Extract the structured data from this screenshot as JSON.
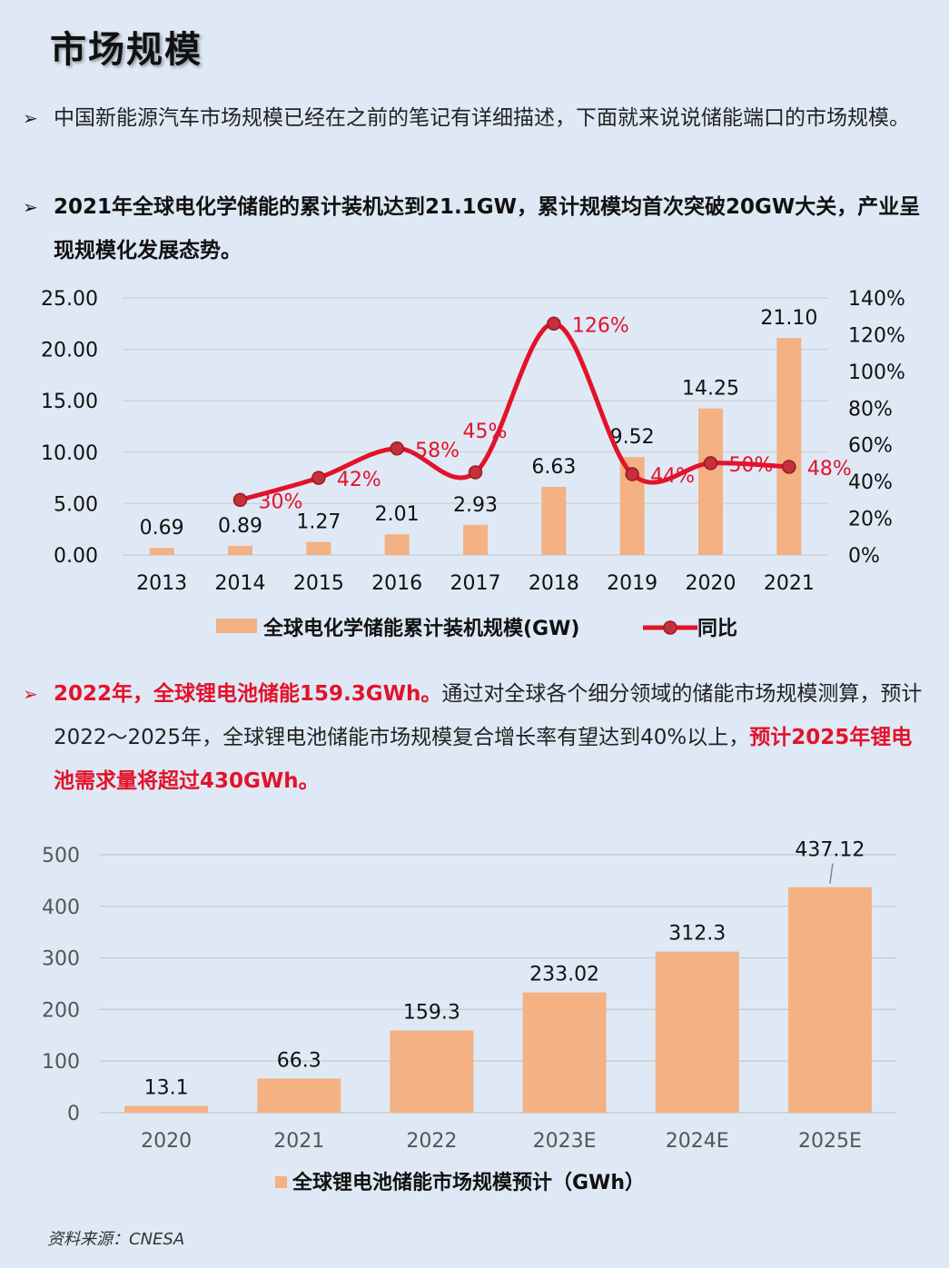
{
  "title": "市场规模",
  "bullet1": {
    "text": "中国新能源汽车市场规模已经在之前的笔记有详细描述，下面就来说说储能端口的市场规模。"
  },
  "bullet2": {
    "text": "2021年全球电化学储能的累计装机达到21.1GW，累计规模均首次突破20GW大关，产业呈现规模化发展态势。"
  },
  "bullet3": {
    "part1": "2022年，全球锂电池储能159.3GWh。",
    "part2": "通过对全球各个细分领域的储能市场规模测算，预计2022～2025年，全球锂电池储能市场规模复合增长率有望达到40%以上，",
    "part3": "预计2025年锂电池需求量将超过430GWh。"
  },
  "source": "资料来源：CNESA",
  "chart_data": [
    {
      "type": "bar",
      "categories": [
        "2013",
        "2014",
        "2015",
        "2016",
        "2017",
        "2018",
        "2019",
        "2020",
        "2021"
      ],
      "series": [
        {
          "name": "全球电化学储能累计装机规模(GW)",
          "values": [
            0.69,
            0.89,
            1.27,
            2.01,
            2.93,
            6.63,
            9.52,
            14.25,
            21.1
          ],
          "labels": [
            "0.69",
            "0.89",
            "1.27",
            "2.01",
            "2.93",
            "6.63",
            "9.52",
            "14.25",
            "21.10"
          ],
          "color": "#f4b183",
          "axis": "left"
        },
        {
          "name": "同比",
          "type": "line",
          "values": [
            null,
            30,
            42,
            58,
            45,
            126,
            44,
            50,
            48
          ],
          "labels": [
            "",
            "30%",
            "42%",
            "58%",
            "45%",
            "126%",
            "44%",
            "50%",
            "48%"
          ],
          "color": "#e3122a",
          "axis": "right"
        }
      ],
      "yticks_left": [
        "0.00",
        "5.00",
        "10.00",
        "15.00",
        "20.00",
        "25.00"
      ],
      "ylim_left": [
        0,
        25
      ],
      "yticks_right": [
        "0%",
        "20%",
        "40%",
        "60%",
        "80%",
        "100%",
        "120%",
        "140%"
      ],
      "ylim_right": [
        0,
        140
      ],
      "grid": true,
      "legend": "bottom"
    },
    {
      "type": "bar",
      "categories": [
        "2020",
        "2021",
        "2022",
        "2023E",
        "2024E",
        "2025E"
      ],
      "series": [
        {
          "name": "全球锂电池储能市场规模预计（GWh）",
          "values": [
            13.1,
            66.3,
            159.3,
            233.02,
            312.3,
            437.12
          ],
          "labels": [
            "13.1",
            "66.3",
            "159.3",
            "233.02",
            "312.3",
            "437.12"
          ],
          "color": "#f4b183"
        }
      ],
      "yticks": [
        "0",
        "100",
        "200",
        "300",
        "400",
        "500"
      ],
      "ylim": [
        0,
        500
      ],
      "grid": true,
      "legend": "bottom"
    }
  ]
}
